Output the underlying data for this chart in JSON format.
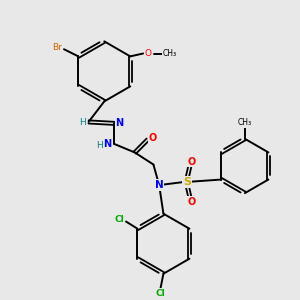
{
  "background_color": "#e8e8e8",
  "bond_color": "#000000",
  "atom_colors": {
    "Br": "#cc6600",
    "O": "#ff0000",
    "N": "#0000ff",
    "S": "#ccaa00",
    "Cl": "#00aa00",
    "H": "#008080",
    "C": "#000000"
  }
}
